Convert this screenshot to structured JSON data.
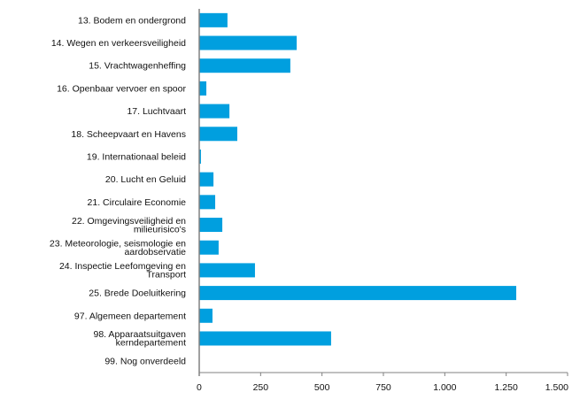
{
  "chart_data": {
    "type": "bar",
    "orientation": "horizontal",
    "categories": [
      [
        "13. Bodem en ondergrond"
      ],
      [
        "14. Wegen en verkeersveiligheid"
      ],
      [
        "15. Vrachtwagenheffing"
      ],
      [
        "16. Openbaar vervoer en spoor"
      ],
      [
        "17. Luchtvaart"
      ],
      [
        "18. Scheepvaart en Havens"
      ],
      [
        "19. Internationaal beleid"
      ],
      [
        "20. Lucht en Geluid"
      ],
      [
        "21. Circulaire Economie"
      ],
      [
        "22. Omgevingsveiligheid en",
        "milieurisico's"
      ],
      [
        "23. Meteorologie, seismologie en",
        "aardobservatie"
      ],
      [
        "24. Inspectie Leefomgeving en",
        "Transport"
      ],
      [
        "25. Brede Doeluitkering"
      ],
      [
        "97. Algemeen departement"
      ],
      [
        "98. Apparaatsuitgaven",
        "kerndepartement"
      ],
      [
        "99. Nog onverdeeld"
      ]
    ],
    "values": [
      115,
      397,
      371,
      29,
      123,
      155,
      7,
      58,
      65,
      94,
      79,
      227,
      1291,
      54,
      537,
      0
    ],
    "xlim": [
      0,
      1500
    ],
    "xticks": [
      0,
      250,
      500,
      750,
      1000,
      1250,
      1500
    ],
    "xtick_labels": [
      "0",
      "250",
      "500",
      "750",
      "1.000",
      "1.250",
      "1.500"
    ],
    "grid": false,
    "bar_color": "#009FDF",
    "axis_color": "#808080"
  }
}
